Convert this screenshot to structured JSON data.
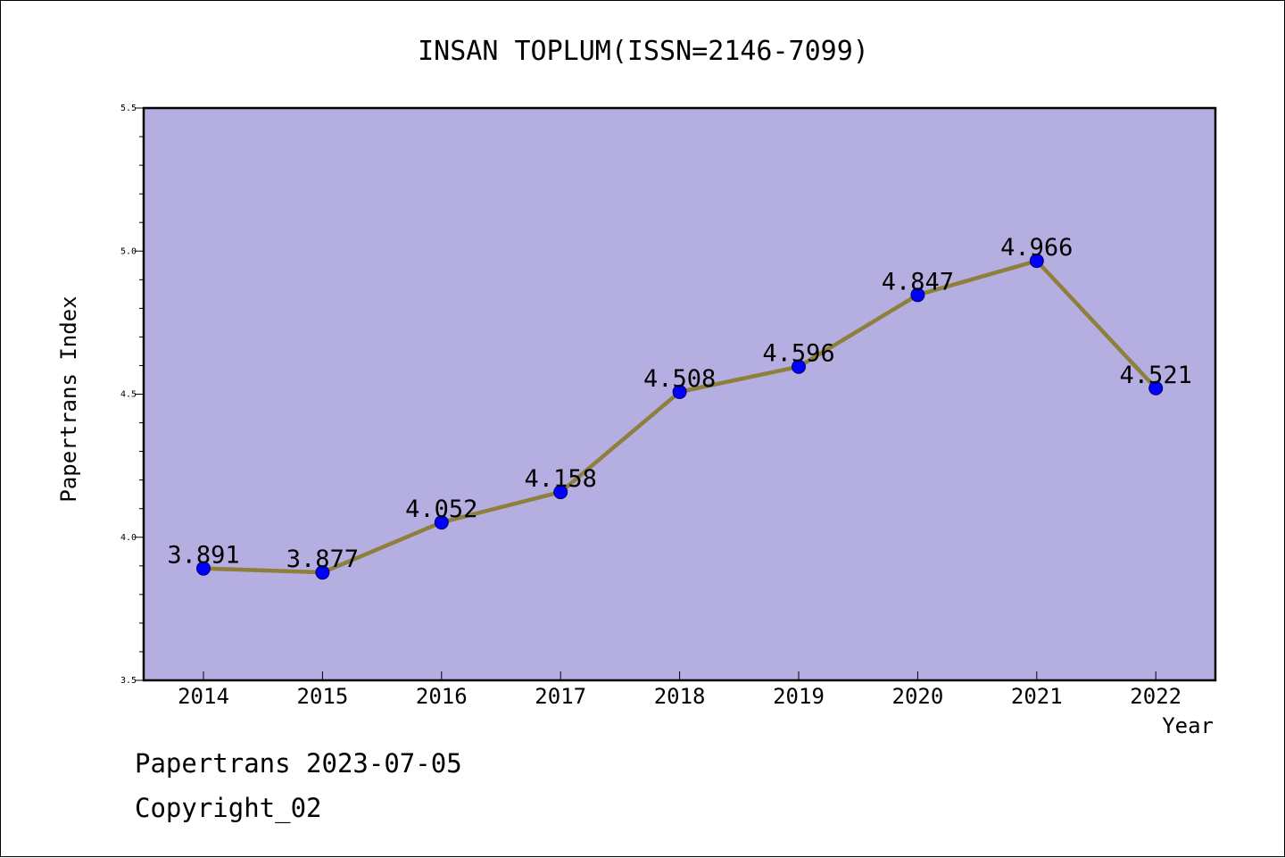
{
  "chart_data": {
    "type": "line",
    "title": "INSAN TOPLUM(ISSN=2146-7099)",
    "xlabel": "Year",
    "ylabel": "Papertrans Index",
    "categories": [
      "2014",
      "2015",
      "2016",
      "2017",
      "2018",
      "2019",
      "2020",
      "2021",
      "2022"
    ],
    "series": [
      {
        "values": [
          3.891,
          3.877,
          4.052,
          4.158,
          4.508,
          4.596,
          4.847,
          4.966,
          4.521
        ],
        "data_labels": [
          "3.891",
          "3.877",
          "4.052",
          "4.158",
          "4.508",
          "4.596",
          "4.847",
          "4.966",
          "4.521"
        ]
      }
    ],
    "ylim": [
      3.5,
      5.5
    ],
    "yticks": [
      "3.5",
      "4.0",
      "4.5",
      "5.0",
      "5.5"
    ],
    "grid": false,
    "colors": {
      "plot_background": "#b5aee1",
      "line": "#8e7f3b",
      "marker": "#0000ff"
    }
  },
  "footer": {
    "date_line": "Papertrans 2023-07-05",
    "copyright_line": "Copyright_02"
  }
}
